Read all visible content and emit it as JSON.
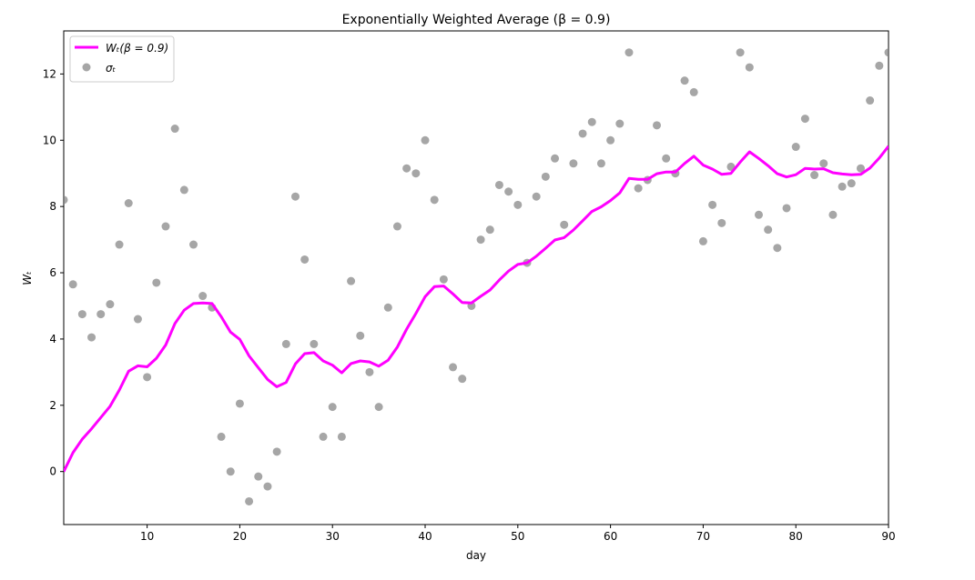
{
  "chart_data": {
    "type": "line",
    "title": "Exponentially Weighted Average (β = 0.9)",
    "xlabel": "day",
    "ylabel": "Wₜ",
    "xlim": [
      1,
      90
    ],
    "ylim": [
      -1.6,
      13.3
    ],
    "xticks": [
      10,
      20,
      30,
      40,
      50,
      60,
      70,
      80,
      90
    ],
    "yticks": [
      0,
      2,
      4,
      6,
      8,
      10,
      12
    ],
    "grid": false,
    "legend": "top-left",
    "series": [
      {
        "name": "Wₜ(β = 0.9)",
        "kind": "line",
        "color": "#ff00ff",
        "x": [
          1,
          2,
          3,
          4,
          5,
          6,
          7,
          8,
          9,
          10,
          11,
          12,
          13,
          14,
          15,
          16,
          17,
          18,
          19,
          20,
          21,
          22,
          23,
          24,
          25,
          26,
          27,
          28,
          29,
          30,
          31,
          32,
          33,
          34,
          35,
          36,
          37,
          38,
          39,
          40,
          41,
          42,
          43,
          44,
          45,
          46,
          47,
          48,
          49,
          50,
          51,
          52,
          53,
          54,
          55,
          56,
          57,
          58,
          59,
          60,
          61,
          62,
          63,
          64,
          65,
          66,
          67,
          68,
          69,
          70,
          71,
          72,
          73,
          74,
          75,
          76,
          77,
          78,
          79,
          80,
          81,
          82,
          83,
          84,
          85,
          86,
          87,
          88,
          89,
          90
        ],
        "y": [
          0.0,
          0.57,
          0.98,
          1.29,
          1.63,
          1.97,
          2.46,
          3.03,
          3.19,
          3.16,
          3.42,
          3.82,
          4.47,
          4.87,
          5.07,
          5.09,
          5.07,
          4.67,
          4.21,
          3.99,
          3.49,
          3.13,
          2.78,
          2.56,
          2.69,
          3.25,
          3.56,
          3.59,
          3.34,
          3.21,
          2.98,
          3.26,
          3.34,
          3.31,
          3.18,
          3.36,
          3.76,
          4.3,
          4.77,
          5.28,
          5.58,
          5.6,
          5.36,
          5.1,
          5.09,
          5.29,
          5.48,
          5.78,
          6.05,
          6.25,
          6.3,
          6.5,
          6.74,
          6.99,
          7.06,
          7.29,
          7.57,
          7.85,
          7.99,
          8.18,
          8.41,
          8.85,
          8.82,
          8.82,
          8.99,
          9.04,
          9.04,
          9.3,
          9.52,
          9.25,
          9.13,
          8.97,
          9.0,
          9.34,
          9.65,
          9.45,
          9.23,
          8.99,
          8.89,
          8.96,
          9.15,
          9.13,
          9.14,
          9.02,
          8.98,
          8.96,
          8.97,
          9.16,
          9.46,
          9.82
        ]
      },
      {
        "name": "σₜ",
        "kind": "scatter",
        "color": "#808080",
        "x": [
          1,
          2,
          3,
          4,
          5,
          6,
          7,
          8,
          9,
          10,
          11,
          12,
          13,
          14,
          15,
          16,
          17,
          18,
          19,
          20,
          21,
          22,
          23,
          24,
          25,
          26,
          27,
          28,
          29,
          30,
          31,
          32,
          33,
          34,
          35,
          36,
          37,
          38,
          39,
          40,
          41,
          42,
          43,
          44,
          45,
          46,
          47,
          48,
          49,
          50,
          51,
          52,
          53,
          54,
          55,
          56,
          57,
          58,
          59,
          60,
          61,
          62,
          63,
          64,
          65,
          66,
          67,
          68,
          69,
          70,
          71,
          72,
          73,
          74,
          75,
          76,
          77,
          78,
          79,
          80,
          81,
          82,
          83,
          84,
          85,
          86,
          87,
          88,
          89,
          90
        ],
        "y": [
          8.2,
          5.65,
          4.75,
          4.05,
          4.75,
          5.05,
          6.85,
          8.1,
          4.6,
          2.85,
          5.7,
          7.4,
          10.35,
          8.5,
          6.85,
          5.3,
          4.95,
          1.05,
          0.0,
          2.05,
          -0.9,
          -0.15,
          -0.45,
          0.6,
          3.85,
          8.3,
          6.4,
          3.85,
          1.05,
          1.95,
          1.05,
          5.75,
          4.1,
          3.0,
          1.95,
          4.95,
          7.4,
          9.15,
          9.0,
          10.0,
          8.2,
          5.8,
          3.15,
          2.8,
          5.0,
          7.0,
          7.3,
          8.65,
          8.45,
          8.05,
          6.3,
          8.3,
          8.9,
          9.45,
          7.45,
          9.3,
          10.2,
          10.55,
          9.3,
          10.0,
          10.5,
          12.65,
          8.55,
          8.8,
          10.45,
          9.45,
          9.0,
          11.8,
          11.45,
          6.95,
          8.05,
          7.5,
          9.2,
          12.65,
          12.2,
          7.75,
          7.3,
          6.75,
          7.95,
          9.8,
          10.65,
          8.95,
          9.3,
          7.75,
          8.6,
          8.7,
          9.15,
          11.2,
          12.25,
          12.65
        ]
      }
    ]
  }
}
